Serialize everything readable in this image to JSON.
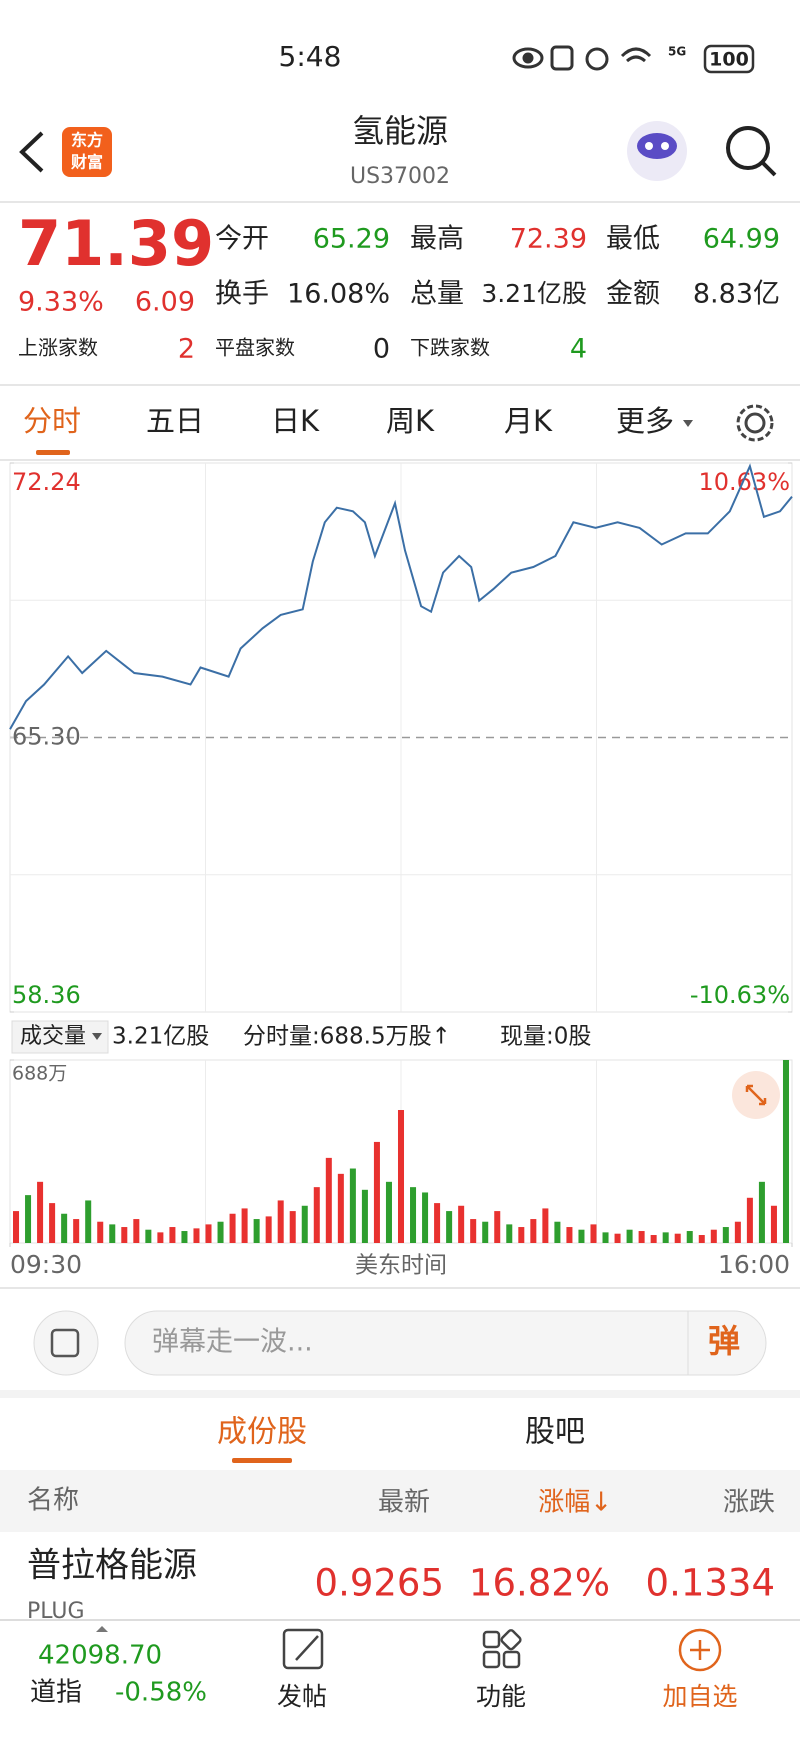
{
  "status_bar": {
    "time": "5:48",
    "network": "5G",
    "battery": "100"
  },
  "header": {
    "logo": [
      "东方",
      "财富"
    ],
    "title": "氢能源",
    "code": "US37002"
  },
  "quote": {
    "price": "71.39",
    "change_pct": "9.33%",
    "change": "6.09",
    "stats": [
      {
        "label": "今开",
        "value": "65.29"
      },
      {
        "label": "最高",
        "value": "72.39"
      },
      {
        "label": "最低",
        "value": "64.99"
      },
      {
        "label": "换手",
        "value": "16.08%"
      },
      {
        "label": "总量",
        "value": "3.21亿股"
      },
      {
        "label": "金额",
        "value": "8.83亿"
      }
    ],
    "breadth": [
      {
        "label": "上涨家数",
        "value": "2"
      },
      {
        "label": "平盘家数",
        "value": "0"
      },
      {
        "label": "下跌家数",
        "value": "4"
      }
    ]
  },
  "tabs": [
    "分时",
    "五日",
    "日K",
    "周K",
    "月K",
    "更多"
  ],
  "price_chart": {
    "type": "line",
    "color": "#3b6fa6",
    "x": [
      0,
      8,
      17,
      29,
      36,
      48,
      62,
      76,
      90,
      95,
      109,
      115,
      126,
      135,
      146,
      151,
      157,
      163,
      171,
      177,
      182,
      192,
      197,
      205,
      210,
      216,
      224,
      230,
      234,
      241,
      250,
      261,
      272,
      281,
      292,
      303,
      314,
      325,
      337,
      348,
      359,
      369,
      376,
      384,
      390
    ],
    "values": [
      65.51,
      66.22,
      66.64,
      67.35,
      66.93,
      67.49,
      66.93,
      66.84,
      66.64,
      67.07,
      66.84,
      67.55,
      68.06,
      68.4,
      68.54,
      69.75,
      70.74,
      71.11,
      71.02,
      70.74,
      69.89,
      71.22,
      70.03,
      68.62,
      68.48,
      69.47,
      69.89,
      69.61,
      68.76,
      69.05,
      69.47,
      69.61,
      69.89,
      70.74,
      70.6,
      70.74,
      70.6,
      70.18,
      70.46,
      70.46,
      71.02,
      72.16,
      70.88,
      71.02,
      71.39
    ],
    "xlim": [
      0,
      390
    ],
    "xticks": [
      {
        "value": 0,
        "label": "09:30"
      },
      {
        "value": 390,
        "label": "16:00"
      }
    ],
    "x_label": "美东时间",
    "ylim": [
      58.36,
      72.24
    ],
    "yticks": [
      72.24,
      {
        "value": 65.3,
        "label": "65.30"
      },
      58.36
    ],
    "baseline": 65.3,
    "y2lim": [
      -10.63,
      10.63
    ],
    "y2ticks": [
      {
        "value": 10.63,
        "label": "10.63%"
      },
      {
        "value": -10.63,
        "label": "-10.63%"
      }
    ]
  },
  "volume_info": {
    "label": "成交量",
    "total": "3.21亿股",
    "minute_volume": "分时量:688.5万股↑",
    "current": "现量:0股"
  },
  "volume_chart": {
    "type": "bar",
    "xlim": [
      0,
      390
    ],
    "values": [
      120,
      180,
      230,
      150,
      110,
      90,
      160,
      80,
      70,
      60,
      90,
      50,
      40,
      60,
      45,
      55,
      70,
      80,
      110,
      130,
      90,
      100,
      160,
      120,
      140,
      210,
      320,
      260,
      280,
      200,
      380,
      230,
      500,
      210,
      190,
      150,
      120,
      140,
      90,
      80,
      120,
      70,
      60,
      90,
      130,
      80,
      60,
      50,
      70,
      40,
      35,
      50,
      45,
      30,
      40,
      35,
      45,
      30,
      50,
      60,
      80,
      170,
      230,
      140,
      688
    ],
    "colors": [
      "#e8312f",
      "#2e9e2e",
      "#e8312f",
      "#e8312f",
      "#2e9e2e",
      "#e8312f",
      "#2e9e2e",
      "#e8312f",
      "#2e9e2e",
      "#e8312f",
      "#e8312f",
      "#2e9e2e",
      "#e8312f",
      "#e8312f",
      "#2e9e2e",
      "#e8312f",
      "#e8312f",
      "#2e9e2e",
      "#e8312f",
      "#e8312f",
      "#2e9e2e",
      "#e8312f",
      "#e8312f",
      "#e8312f",
      "#2e9e2e",
      "#e8312f",
      "#e8312f",
      "#e8312f",
      "#2e9e2e",
      "#2e9e2e",
      "#e8312f",
      "#2e9e2e",
      "#e8312f",
      "#2e9e2e",
      "#2e9e2e",
      "#e8312f",
      "#2e9e2e",
      "#e8312f",
      "#e8312f",
      "#2e9e2e",
      "#e8312f",
      "#2e9e2e",
      "#e8312f",
      "#e8312f",
      "#e8312f",
      "#2e9e2e",
      "#e8312f",
      "#2e9e2e",
      "#e8312f",
      "#2e9e2e",
      "#e8312f",
      "#2e9e2e",
      "#e8312f",
      "#e8312f",
      "#2e9e2e",
      "#e8312f",
      "#2e9e2e",
      "#e8312f",
      "#e8312f",
      "#2e9e2e",
      "#e8312f",
      "#e8312f",
      "#2e9e2e",
      "#e8312f",
      "#2e9e2e"
    ],
    "ylim": [
      0,
      688
    ],
    "yticks": [
      {
        "value": 688,
        "label": "688万"
      }
    ]
  },
  "comment": {
    "placeholder": "弹幕走一波...",
    "button": "弹"
  },
  "section_tabs": [
    "成份股",
    "股吧"
  ],
  "table": {
    "columns": [
      "名称",
      "最新",
      "涨幅↓",
      "涨跌"
    ],
    "rows": [
      {
        "name": "普拉格能源",
        "code": "PLUG",
        "last": "0.9265",
        "pct": "16.82%",
        "change": "0.1334"
      }
    ]
  },
  "bottom_bar": {
    "index_value": "42098.70",
    "index_name": "道指",
    "index_change": "-0.58%",
    "items": [
      "发帖",
      "功能",
      "加自选"
    ]
  }
}
